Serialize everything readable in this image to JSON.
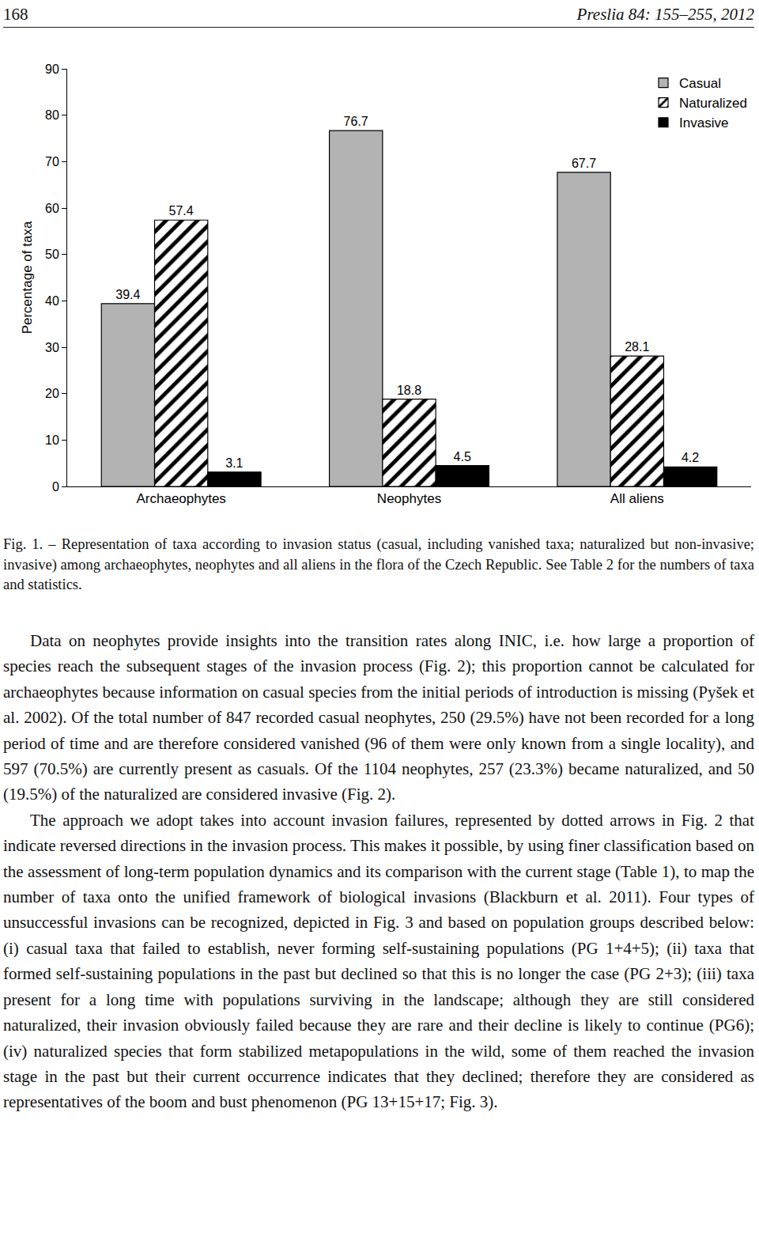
{
  "header": {
    "page": "168",
    "journal": "Preslia 84: 155–255, 2012"
  },
  "chart_data": {
    "type": "bar",
    "categories": [
      "Archaeophytes",
      "Neophytes",
      "All aliens"
    ],
    "series": [
      {
        "name": "Casual",
        "color": "#b3b3b3",
        "values": [
          39.4,
          76.7,
          67.7
        ]
      },
      {
        "name": "Naturalized",
        "color": "#ffffff",
        "marker": "hatch",
        "values": [
          57.4,
          18.8,
          28.1
        ]
      },
      {
        "name": "Invasive",
        "color": "#000000",
        "values": [
          3.1,
          4.5,
          4.2
        ]
      }
    ],
    "y_label": "Percentage of taxa",
    "ylim": [
      0,
      90
    ],
    "yticks": [
      0,
      10,
      20,
      30,
      40,
      50,
      60,
      70,
      80,
      90
    ],
    "legend": "top right",
    "data_labels": true,
    "grid": false
  },
  "caption": "Fig. 1. – Representation of taxa according to invasion status (casual, including vanished taxa; naturalized but non-invasive; invasive) among archaeophytes, neophytes and all aliens in the flora of the Czech Republic. See Table 2 for the numbers of taxa and statistics.",
  "body": [
    "Data on neophytes provide insights into the transition rates along INIC, i.e. how large a proportion of species reach the subsequent stages of the invasion process (Fig. 2); this proportion cannot be calculated for archaeophytes because information on casual species from the initial periods of introduction is missing (Pyšek et al. 2002). Of the total number of 847 recorded casual neophytes, 250 (29.5%) have not been recorded for a long period of time and are therefore considered vanished (96 of them were only known from a single locality), and 597 (70.5%) are currently present as casuals. Of the 1104 neophytes, 257 (23.3%) became naturalized, and 50 (19.5%) of the naturalized are considered invasive (Fig. 2).",
    "The approach we adopt takes into account invasion failures, represented by dotted arrows in Fig. 2 that indicate reversed directions in the invasion process. This makes it possible, by using finer classification based on the assessment of long-term population dynamics and its comparison with the current stage (Table 1), to map the number of taxa onto the unified framework of biological invasions (Blackburn et al. 2011). Four types of unsuccessful invasions can be recognized, depicted in Fig. 3 and based on population groups described below: (i) casual taxa that failed to establish, never forming self-sustaining populations (PG 1+4+5); (ii) taxa that formed self-sustaining populations in the past but declined so that this is no longer the case (PG 2+3); (iii) taxa present for a long time with populations surviving in the landscape; although they are still considered naturalized, their invasion obviously failed because they are rare and their decline is likely to continue (PG6); (iv) naturalized species that form stabilized metapopulations in the wild, some of them reached the invasion stage in the past but their current occurrence indicates that they declined; therefore they are considered as representatives of the boom and bust phenomenon (PG 13+15+17; Fig. 3)."
  ]
}
